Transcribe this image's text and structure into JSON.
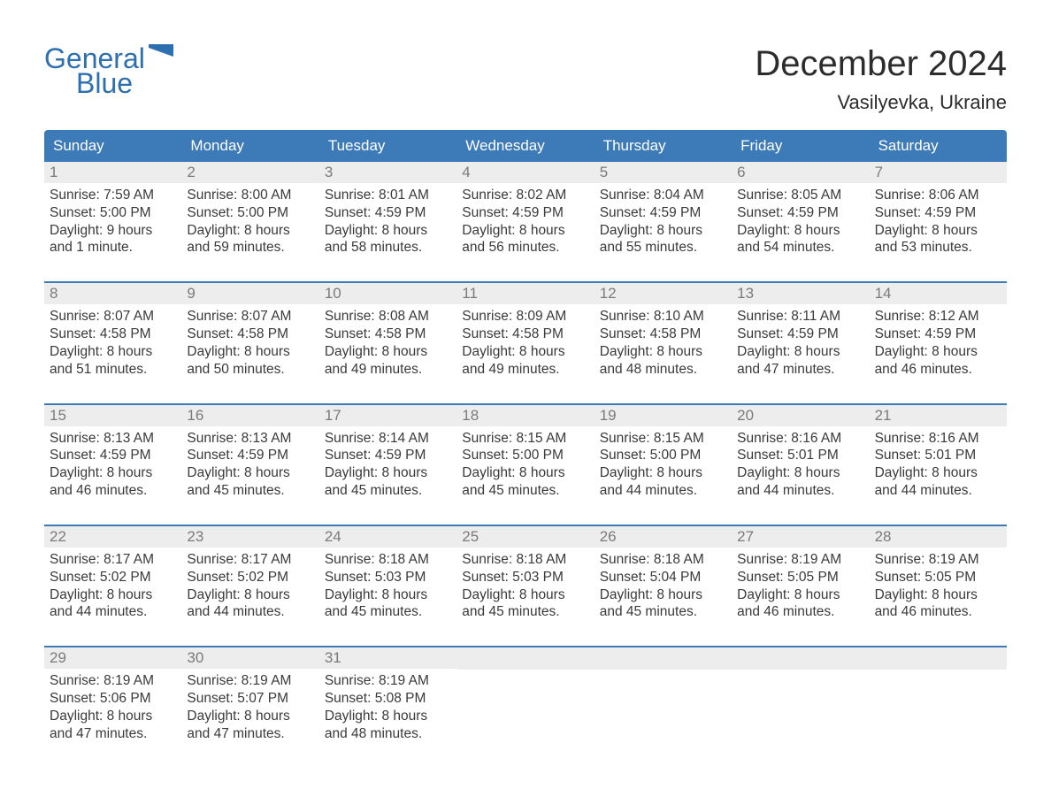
{
  "brand": {
    "word1": "General",
    "word2": "Blue",
    "color": "#2d6faf"
  },
  "title": "December 2024",
  "location": "Vasilyevka, Ukraine",
  "colors": {
    "header_bg": "#3d7ab8",
    "header_text": "#ffffff",
    "daynum_bg": "#ededed",
    "daynum_text": "#7a7a7a",
    "body_text": "#3a3a3a",
    "rule": "#3d7ab8",
    "page_bg": "#ffffff"
  },
  "typography": {
    "title_fontsize": 40,
    "location_fontsize": 22,
    "weekday_fontsize": 17,
    "daynum_fontsize": 17,
    "body_fontsize": 15.5
  },
  "weekdays": [
    "Sunday",
    "Monday",
    "Tuesday",
    "Wednesday",
    "Thursday",
    "Friday",
    "Saturday"
  ],
  "weeks": [
    [
      {
        "n": "1",
        "sunrise": "Sunrise: 7:59 AM",
        "sunset": "Sunset: 5:00 PM",
        "d1": "Daylight: 9 hours",
        "d2": "and 1 minute."
      },
      {
        "n": "2",
        "sunrise": "Sunrise: 8:00 AM",
        "sunset": "Sunset: 5:00 PM",
        "d1": "Daylight: 8 hours",
        "d2": "and 59 minutes."
      },
      {
        "n": "3",
        "sunrise": "Sunrise: 8:01 AM",
        "sunset": "Sunset: 4:59 PM",
        "d1": "Daylight: 8 hours",
        "d2": "and 58 minutes."
      },
      {
        "n": "4",
        "sunrise": "Sunrise: 8:02 AM",
        "sunset": "Sunset: 4:59 PM",
        "d1": "Daylight: 8 hours",
        "d2": "and 56 minutes."
      },
      {
        "n": "5",
        "sunrise": "Sunrise: 8:04 AM",
        "sunset": "Sunset: 4:59 PM",
        "d1": "Daylight: 8 hours",
        "d2": "and 55 minutes."
      },
      {
        "n": "6",
        "sunrise": "Sunrise: 8:05 AM",
        "sunset": "Sunset: 4:59 PM",
        "d1": "Daylight: 8 hours",
        "d2": "and 54 minutes."
      },
      {
        "n": "7",
        "sunrise": "Sunrise: 8:06 AM",
        "sunset": "Sunset: 4:59 PM",
        "d1": "Daylight: 8 hours",
        "d2": "and 53 minutes."
      }
    ],
    [
      {
        "n": "8",
        "sunrise": "Sunrise: 8:07 AM",
        "sunset": "Sunset: 4:58 PM",
        "d1": "Daylight: 8 hours",
        "d2": "and 51 minutes."
      },
      {
        "n": "9",
        "sunrise": "Sunrise: 8:07 AM",
        "sunset": "Sunset: 4:58 PM",
        "d1": "Daylight: 8 hours",
        "d2": "and 50 minutes."
      },
      {
        "n": "10",
        "sunrise": "Sunrise: 8:08 AM",
        "sunset": "Sunset: 4:58 PM",
        "d1": "Daylight: 8 hours",
        "d2": "and 49 minutes."
      },
      {
        "n": "11",
        "sunrise": "Sunrise: 8:09 AM",
        "sunset": "Sunset: 4:58 PM",
        "d1": "Daylight: 8 hours",
        "d2": "and 49 minutes."
      },
      {
        "n": "12",
        "sunrise": "Sunrise: 8:10 AM",
        "sunset": "Sunset: 4:58 PM",
        "d1": "Daylight: 8 hours",
        "d2": "and 48 minutes."
      },
      {
        "n": "13",
        "sunrise": "Sunrise: 8:11 AM",
        "sunset": "Sunset: 4:59 PM",
        "d1": "Daylight: 8 hours",
        "d2": "and 47 minutes."
      },
      {
        "n": "14",
        "sunrise": "Sunrise: 8:12 AM",
        "sunset": "Sunset: 4:59 PM",
        "d1": "Daylight: 8 hours",
        "d2": "and 46 minutes."
      }
    ],
    [
      {
        "n": "15",
        "sunrise": "Sunrise: 8:13 AM",
        "sunset": "Sunset: 4:59 PM",
        "d1": "Daylight: 8 hours",
        "d2": "and 46 minutes."
      },
      {
        "n": "16",
        "sunrise": "Sunrise: 8:13 AM",
        "sunset": "Sunset: 4:59 PM",
        "d1": "Daylight: 8 hours",
        "d2": "and 45 minutes."
      },
      {
        "n": "17",
        "sunrise": "Sunrise: 8:14 AM",
        "sunset": "Sunset: 4:59 PM",
        "d1": "Daylight: 8 hours",
        "d2": "and 45 minutes."
      },
      {
        "n": "18",
        "sunrise": "Sunrise: 8:15 AM",
        "sunset": "Sunset: 5:00 PM",
        "d1": "Daylight: 8 hours",
        "d2": "and 45 minutes."
      },
      {
        "n": "19",
        "sunrise": "Sunrise: 8:15 AM",
        "sunset": "Sunset: 5:00 PM",
        "d1": "Daylight: 8 hours",
        "d2": "and 44 minutes."
      },
      {
        "n": "20",
        "sunrise": "Sunrise: 8:16 AM",
        "sunset": "Sunset: 5:01 PM",
        "d1": "Daylight: 8 hours",
        "d2": "and 44 minutes."
      },
      {
        "n": "21",
        "sunrise": "Sunrise: 8:16 AM",
        "sunset": "Sunset: 5:01 PM",
        "d1": "Daylight: 8 hours",
        "d2": "and 44 minutes."
      }
    ],
    [
      {
        "n": "22",
        "sunrise": "Sunrise: 8:17 AM",
        "sunset": "Sunset: 5:02 PM",
        "d1": "Daylight: 8 hours",
        "d2": "and 44 minutes."
      },
      {
        "n": "23",
        "sunrise": "Sunrise: 8:17 AM",
        "sunset": "Sunset: 5:02 PM",
        "d1": "Daylight: 8 hours",
        "d2": "and 44 minutes."
      },
      {
        "n": "24",
        "sunrise": "Sunrise: 8:18 AM",
        "sunset": "Sunset: 5:03 PM",
        "d1": "Daylight: 8 hours",
        "d2": "and 45 minutes."
      },
      {
        "n": "25",
        "sunrise": "Sunrise: 8:18 AM",
        "sunset": "Sunset: 5:03 PM",
        "d1": "Daylight: 8 hours",
        "d2": "and 45 minutes."
      },
      {
        "n": "26",
        "sunrise": "Sunrise: 8:18 AM",
        "sunset": "Sunset: 5:04 PM",
        "d1": "Daylight: 8 hours",
        "d2": "and 45 minutes."
      },
      {
        "n": "27",
        "sunrise": "Sunrise: 8:19 AM",
        "sunset": "Sunset: 5:05 PM",
        "d1": "Daylight: 8 hours",
        "d2": "and 46 minutes."
      },
      {
        "n": "28",
        "sunrise": "Sunrise: 8:19 AM",
        "sunset": "Sunset: 5:05 PM",
        "d1": "Daylight: 8 hours",
        "d2": "and 46 minutes."
      }
    ],
    [
      {
        "n": "29",
        "sunrise": "Sunrise: 8:19 AM",
        "sunset": "Sunset: 5:06 PM",
        "d1": "Daylight: 8 hours",
        "d2": "and 47 minutes."
      },
      {
        "n": "30",
        "sunrise": "Sunrise: 8:19 AM",
        "sunset": "Sunset: 5:07 PM",
        "d1": "Daylight: 8 hours",
        "d2": "and 47 minutes."
      },
      {
        "n": "31",
        "sunrise": "Sunrise: 8:19 AM",
        "sunset": "Sunset: 5:08 PM",
        "d1": "Daylight: 8 hours",
        "d2": "and 48 minutes."
      },
      null,
      null,
      null,
      null
    ]
  ]
}
